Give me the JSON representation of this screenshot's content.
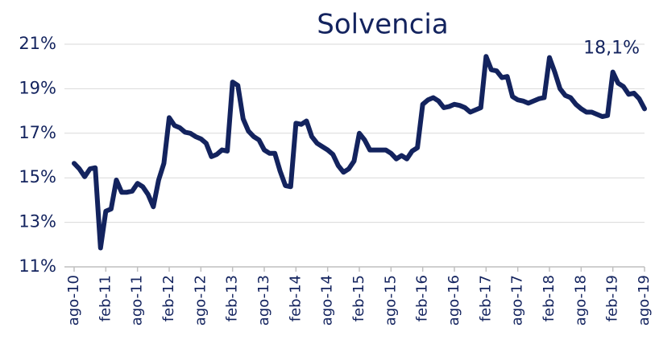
{
  "chart_data": {
    "type": "line",
    "title": "Solvencia",
    "categories": [
      "ago-10",
      null,
      null,
      null,
      null,
      null,
      "feb-11",
      null,
      null,
      null,
      null,
      null,
      "ago-11",
      null,
      null,
      null,
      null,
      null,
      "feb-12",
      null,
      null,
      null,
      null,
      null,
      "ago-12",
      null,
      null,
      null,
      null,
      null,
      "feb-13",
      null,
      null,
      null,
      null,
      null,
      "ago-13",
      null,
      null,
      null,
      null,
      null,
      "feb-14",
      null,
      null,
      null,
      null,
      null,
      "ago-14",
      null,
      null,
      null,
      null,
      null,
      "feb-15",
      null,
      null,
      null,
      null,
      null,
      "ago-15",
      null,
      null,
      null,
      null,
      null,
      "feb-16",
      null,
      null,
      null,
      null,
      null,
      "ago-16",
      null,
      null,
      null,
      null,
      null,
      "feb-17",
      null,
      null,
      null,
      null,
      null,
      "ago-17",
      null,
      null,
      null,
      null,
      null,
      "feb-18",
      null,
      null,
      null,
      null,
      null,
      "ago-18",
      null,
      null,
      null,
      null,
      null,
      "feb-19",
      null,
      null,
      null,
      null,
      null,
      "ago-19"
    ],
    "series": [
      {
        "name": "Solvencia",
        "color": "#13235e",
        "values": [
          15.65,
          15.4,
          15.05,
          15.4,
          15.45,
          11.85,
          13.5,
          13.6,
          14.9,
          14.35,
          14.35,
          14.4,
          14.75,
          14.6,
          14.25,
          13.7,
          14.9,
          15.65,
          17.7,
          17.35,
          17.25,
          17.05,
          17.0,
          16.85,
          16.75,
          16.55,
          15.95,
          16.05,
          16.25,
          16.2,
          19.3,
          19.15,
          17.65,
          17.1,
          16.85,
          16.7,
          16.25,
          16.1,
          16.1,
          15.3,
          14.65,
          14.6,
          17.45,
          17.4,
          17.55,
          16.85,
          16.55,
          16.4,
          16.25,
          16.05,
          15.55,
          15.25,
          15.4,
          15.75,
          17.0,
          16.7,
          16.25,
          16.25,
          16.25,
          16.25,
          16.1,
          15.85,
          16.0,
          15.85,
          16.2,
          16.35,
          18.3,
          18.5,
          18.6,
          18.45,
          18.15,
          18.2,
          18.3,
          18.25,
          18.15,
          17.95,
          18.05,
          18.15,
          20.45,
          19.85,
          19.8,
          19.5,
          19.55,
          18.65,
          18.5,
          18.45,
          18.35,
          18.45,
          18.55,
          18.6,
          20.4,
          19.75,
          19.0,
          18.7,
          18.6,
          18.3,
          18.1,
          17.95,
          17.95,
          17.85,
          17.75,
          17.8,
          19.75,
          19.25,
          19.1,
          18.75,
          18.8,
          18.55,
          18.1
        ]
      }
    ],
    "annotations": [
      {
        "text": "18,1%"
      }
    ],
    "ylim": [
      11,
      21
    ],
    "yticks": [
      {
        "value": 11,
        "label": "11%"
      },
      {
        "value": 13,
        "label": "13%"
      },
      {
        "value": 15,
        "label": "15%"
      },
      {
        "value": 17,
        "label": "17%"
      },
      {
        "value": 19,
        "label": "19%"
      },
      {
        "value": 21,
        "label": "21%"
      }
    ],
    "grid": true
  }
}
